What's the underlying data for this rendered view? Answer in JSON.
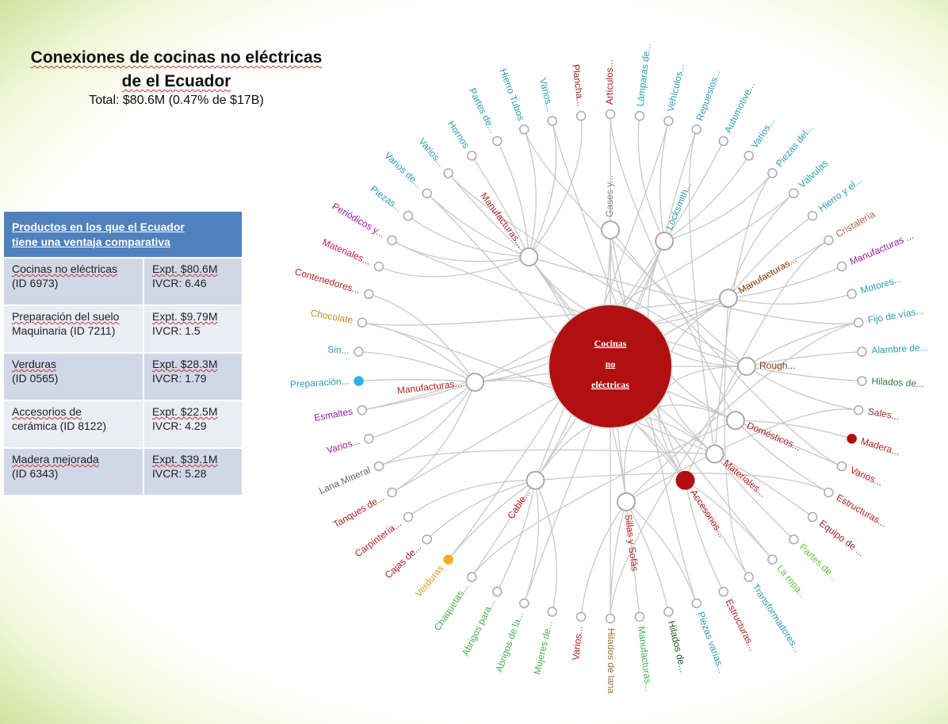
{
  "title": [
    "Conexiones de cocinas no eléctricas",
    "de el Ecuador"
  ],
  "subtitle": "Total: $80.6M (0.47% de $17B)",
  "table": {
    "header": [
      "Productos en los que el Ecuador",
      "tiene una ventaja comparativa"
    ],
    "rows": [
      {
        "product": [
          "Cocinas no eléctricas",
          "(ID 6973)"
        ],
        "stats": [
          "Expt. $80.6M",
          "IVCR: 6.46"
        ]
      },
      {
        "product": [
          "Preparación del suelo",
          "Maquinaria (ID 7211)"
        ],
        "stats": [
          "Expt. $9.79M",
          "IVCR: 1.5"
        ]
      },
      {
        "product": [
          "Verduras",
          "(ID 0565)"
        ],
        "stats": [
          "Expt. $28.3M",
          "IVCR: 1.79"
        ]
      },
      {
        "product": [
          "Accesorios de",
          "cerámica (ID 8122)"
        ],
        "stats": [
          "Expt. $22.5M",
          "IVCR: 4.29"
        ]
      },
      {
        "product": [
          "Madera mejorada",
          "(ID 6343)"
        ],
        "stats": [
          "Expt. $39.1M",
          "IVCR: 5.28"
        ]
      }
    ]
  },
  "center": [
    "Cocinas",
    "no",
    "eléctricas"
  ],
  "inner_nodes": [
    {
      "label": "Manufacturas...",
      "color": "#a52a2a"
    },
    {
      "label": "Gases y...",
      "color": "#888888"
    },
    {
      "label": "Locksmith...",
      "color": "#2a9db5"
    },
    {
      "label": "Manufacturas...",
      "color": "#8b4513"
    },
    {
      "label": "Rough...",
      "color": "#7a3b12"
    },
    {
      "label": "Domésticos...",
      "color": "#b22222"
    },
    {
      "label": "Materiales...",
      "color": "#b22222"
    },
    {
      "label": "Accesorios...",
      "color": "#b22222",
      "fill": "#b01010"
    },
    {
      "label": "Sillas y Sofás",
      "color": "#b22222"
    },
    {
      "label": "Cable...",
      "color": "#b22222"
    },
    {
      "label": "Manufacturas...",
      "color": "#b22222"
    }
  ],
  "outer_nodes": [
    {
      "label": "Artículos...",
      "color": "#b22222",
      "parent": 1
    },
    {
      "label": "Lámparas de...",
      "color": "#2a9db5",
      "parent": 2
    },
    {
      "label": "Vehículos...",
      "color": "#2a9db5",
      "parent": 2
    },
    {
      "label": "Repuestos...",
      "color": "#2a9db5",
      "parent": 2
    },
    {
      "label": "Automotive...",
      "color": "#2a9db5",
      "parent": 2
    },
    {
      "label": "Varios...",
      "color": "#2a9db5",
      "parent": 2
    },
    {
      "label": "Piezas del...",
      "color": "#2a9db5",
      "parent": 2
    },
    {
      "label": "Válvulas",
      "color": "#2a9db5",
      "parent": 3
    },
    {
      "label": "Hierro y el...",
      "color": "#2a9db5",
      "parent": 3
    },
    {
      "label": "Cristalería",
      "color": "#b5654a",
      "parent": 3
    },
    {
      "label": "Manufacturas ...",
      "color": "#a020a0",
      "parent": 3
    },
    {
      "label": "Motores...",
      "color": "#2a9db5",
      "parent": 3
    },
    {
      "label": "Fijo de vías...",
      "color": "#2a9db5",
      "parent": 4
    },
    {
      "label": "Alambre de...",
      "color": "#2a9db5",
      "parent": 4
    },
    {
      "label": "Hilados de...",
      "color": "#2e7d32",
      "parent": 4
    },
    {
      "label": "Sales...",
      "color": "#a0302a",
      "parent": 4
    },
    {
      "label": "Madera...",
      "color": "#b22222",
      "parent": 5,
      "fill": "#b01010"
    },
    {
      "label": "Varios...",
      "color": "#b22222",
      "parent": 5
    },
    {
      "label": "Estructuras...",
      "color": "#b22222",
      "parent": 5
    },
    {
      "label": "Equipo de ...",
      "color": "#b22222",
      "parent": 6
    },
    {
      "label": "Partes de...",
      "color": "#5cc93a",
      "parent": 6
    },
    {
      "label": "La ropa...",
      "color": "#5cc93a",
      "parent": 7
    },
    {
      "label": "Transformadores...",
      "color": "#2a9db5",
      "parent": 7
    },
    {
      "label": "Estructuras...",
      "color": "#b22222",
      "parent": 7
    },
    {
      "label": "Piezas varias...",
      "color": "#2a9db5",
      "parent": 8
    },
    {
      "label": "Hilados de...",
      "color": "#1e5e1e",
      "parent": 8
    },
    {
      "label": "Manufacturas...",
      "color": "#4caf50",
      "parent": 8
    },
    {
      "label": "Hilados de lana",
      "color": "#a0703a",
      "parent": 8
    },
    {
      "label": "Varios...",
      "color": "#b22222",
      "parent": 8
    },
    {
      "label": "Mujeres de...",
      "color": "#4caf50",
      "parent": 9
    },
    {
      "label": "Abrigos de la...",
      "color": "#4caf50",
      "parent": 9
    },
    {
      "label": "Abrigos para...",
      "color": "#4caf50",
      "parent": 9
    },
    {
      "label": "Chaquetas...",
      "color": "#4caf50",
      "parent": 9
    },
    {
      "label": "Verduras",
      "color": "#d4a017",
      "parent": 9,
      "fill": "#f0b020"
    },
    {
      "label": "Cajas de...",
      "color": "#b22222",
      "parent": 9
    },
    {
      "label": "Carpintería...",
      "color": "#b22222",
      "parent": 9
    },
    {
      "label": "Tanques de...",
      "color": "#b22222",
      "parent": 10
    },
    {
      "label": "Lana Mineral",
      "color": "#666666",
      "parent": 10
    },
    {
      "label": "Varios...",
      "color": "#a020a0",
      "parent": 10
    },
    {
      "label": "Esmaltes",
      "color": "#a020a0",
      "parent": 10
    },
    {
      "label": "Preparación...",
      "color": "#2a9db5",
      "parent": 10,
      "fill": "#30b0e8"
    },
    {
      "label": "Sin...",
      "color": "#2a9db5",
      "parent": 10
    },
    {
      "label": "Chocolate",
      "color": "#c09020",
      "parent": 10
    },
    {
      "label": "Contenedores...",
      "color": "#b22222",
      "parent": 10
    },
    {
      "label": "Materiales...",
      "color": "#b0206a",
      "parent": 0
    },
    {
      "label": "Periódicos y...",
      "color": "#a020a0",
      "parent": 0
    },
    {
      "label": "Piezas...",
      "color": "#2a9db5",
      "parent": 0
    },
    {
      "label": "Varios de...",
      "color": "#2a9db5",
      "parent": 0
    },
    {
      "label": "Varios...",
      "color": "#2a9db5",
      "parent": 0
    },
    {
      "label": "Hornos",
      "color": "#2a9db5",
      "parent": 0
    },
    {
      "label": "Partes de...",
      "color": "#2a9db5",
      "parent": 0
    },
    {
      "label": "Hierro Tubos",
      "color": "#2a9db5",
      "parent": 0
    },
    {
      "label": "Varios...",
      "color": "#2a9db5",
      "parent": 0
    },
    {
      "label": "Plancha...",
      "color": "#8b2a1a",
      "parent": 0
    }
  ]
}
